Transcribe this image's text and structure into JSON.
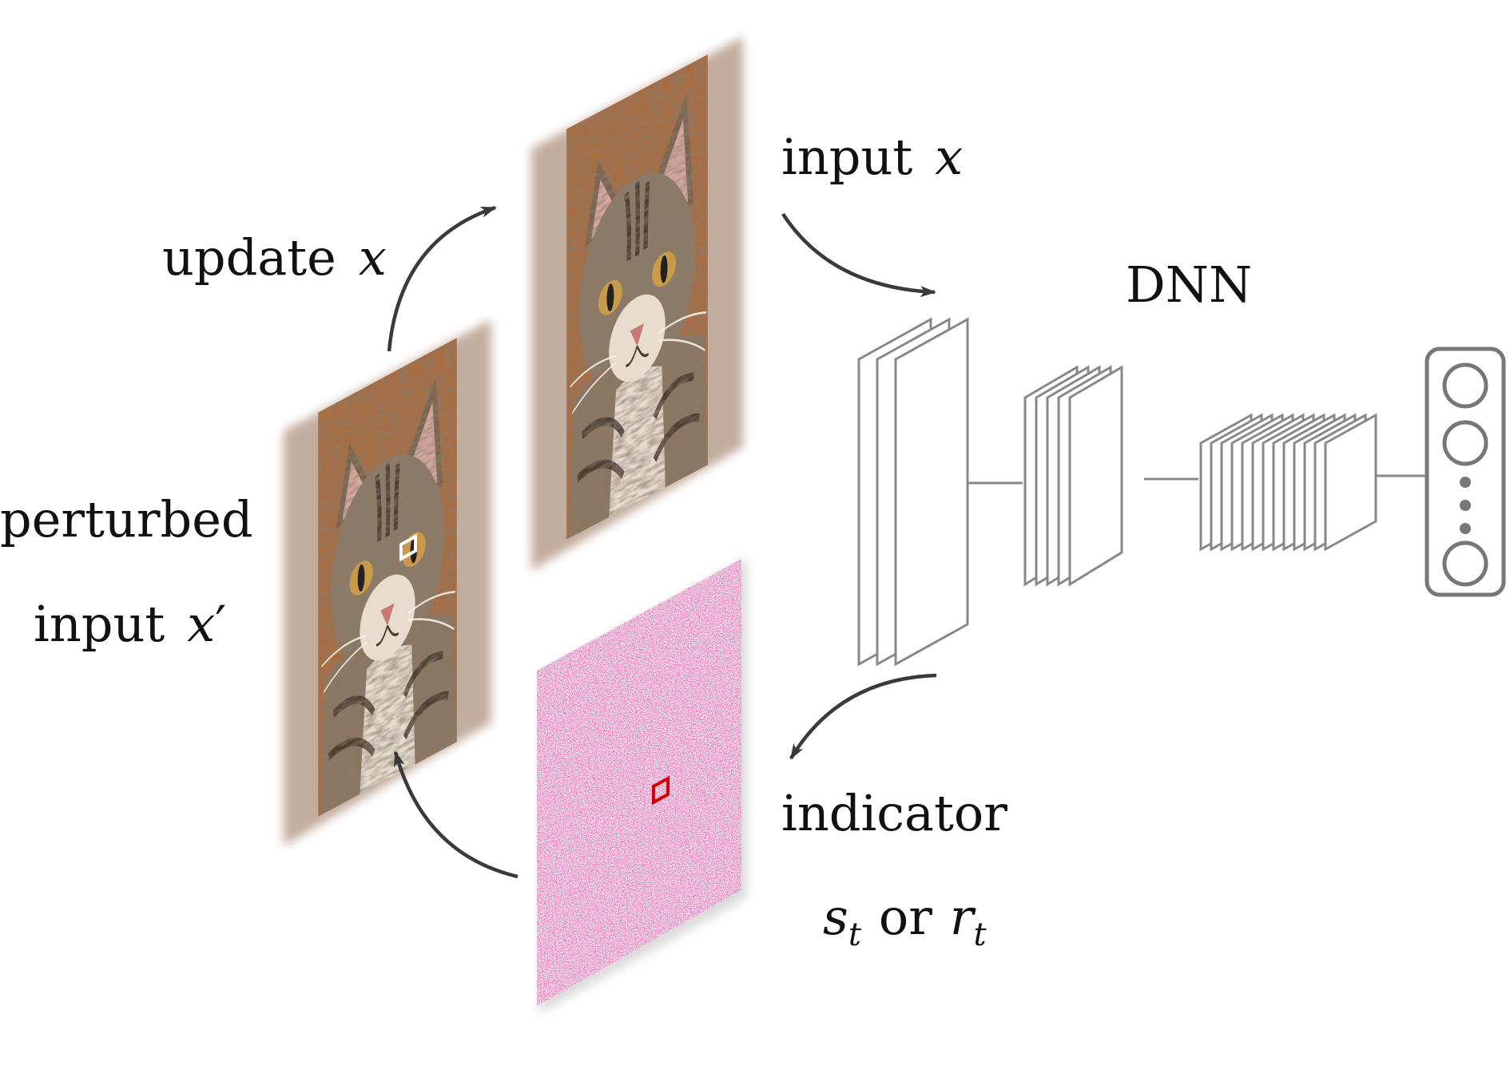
{
  "labels": {
    "input_x": {
      "word": "input",
      "var": "x"
    },
    "update_x": {
      "word": "update",
      "var": "x"
    },
    "dnn": "DNN",
    "perturbed": "perturbed",
    "perturbed_input": {
      "word": "input",
      "var": "x",
      "prime": "′"
    },
    "indicator": "indicator",
    "indicator_formula": {
      "s": "s",
      "s_sub": "t",
      "or": "or",
      "r": "r",
      "r_sub": "t"
    }
  },
  "colors": {
    "arrow": "#3a3a3a",
    "network_stroke": "#888888",
    "output_stroke": "#777777",
    "highlight_patch_cat": "#ffffff",
    "highlight_patch_indicator": "#cc0000",
    "cat_background": "#b8784a"
  }
}
